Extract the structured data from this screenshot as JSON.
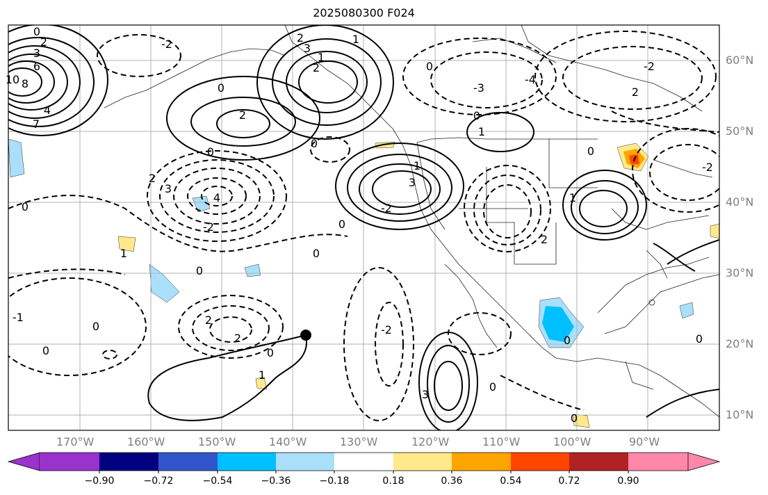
{
  "map": {
    "title": "2025080300 F024",
    "lat_labels": [
      "60°N",
      "50°N",
      "40°N",
      "30°N",
      "20°N",
      "10°N"
    ],
    "lon_labels": [
      "170°W",
      "160°W",
      "150°W",
      "140°W",
      "130°W",
      "120°W",
      "110°W",
      "100°W",
      "90°W"
    ],
    "contour_labels": [
      "0",
      "2",
      "3",
      "6",
      "10",
      "8",
      "4",
      "7",
      "-2",
      "2",
      "3",
      "1",
      "2",
      "1",
      "0",
      "2",
      "0",
      "3",
      "2",
      "0",
      "-2",
      "4",
      "3",
      "0",
      "-2",
      "1",
      "0",
      "0",
      "0",
      "-3",
      "-4",
      "0",
      "2",
      "-2",
      "1",
      "0",
      "0",
      "-2",
      "2",
      "1",
      "0",
      "0",
      "2",
      "2",
      "0",
      "1",
      "0",
      "0",
      "-1",
      "0",
      "-2",
      "1",
      "3",
      "0"
    ],
    "colorbar": {
      "ticks": [
        "−0.90",
        "−0.72",
        "−0.54",
        "−0.36",
        "−0.18",
        "0.18",
        "0.36",
        "0.54",
        "0.72",
        "0.90"
      ],
      "colors": [
        "#9933cc",
        "#000080",
        "#3355cc",
        "#00bfff",
        "#aadffa",
        "#ffffff",
        "#ffe98a",
        "#ffa500",
        "#ff4500",
        "#b22222",
        "#ff88aa"
      ]
    }
  }
}
